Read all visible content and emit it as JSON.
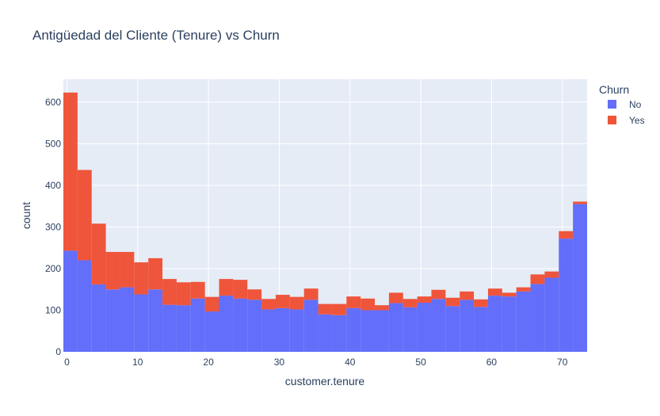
{
  "chart_data": {
    "type": "bar",
    "stacked": true,
    "title": "Antigüedad del Cliente (Tenure) vs Churn",
    "xlabel": "customer.tenure",
    "ylabel": "count",
    "bin_width": 2,
    "bin_start": -0.5,
    "xlim": [
      -0.5,
      73.5
    ],
    "ylim": [
      0,
      655
    ],
    "x_ticks": [
      0,
      10,
      20,
      30,
      40,
      50,
      60,
      70
    ],
    "y_ticks": [
      0,
      100,
      200,
      300,
      400,
      500,
      600
    ],
    "grid": true,
    "legend_title": "Churn",
    "legend_position": "top-right",
    "series": [
      {
        "name": "No",
        "color": "#636efa",
        "values": [
          243,
          220,
          162,
          150,
          155,
          138,
          150,
          113,
          112,
          128,
          97,
          135,
          128,
          125,
          102,
          105,
          102,
          125,
          90,
          88,
          105,
          100,
          100,
          117,
          107,
          118,
          127,
          110,
          125,
          108,
          135,
          133,
          145,
          163,
          178,
          272,
          355
        ]
      },
      {
        "name": "Yes",
        "color": "#ef553b",
        "values": [
          380,
          217,
          146,
          90,
          85,
          77,
          75,
          62,
          55,
          40,
          35,
          40,
          45,
          25,
          25,
          32,
          30,
          27,
          25,
          27,
          28,
          28,
          12,
          25,
          20,
          15,
          22,
          20,
          20,
          18,
          17,
          9,
          10,
          23,
          15,
          18,
          6
        ]
      }
    ]
  }
}
